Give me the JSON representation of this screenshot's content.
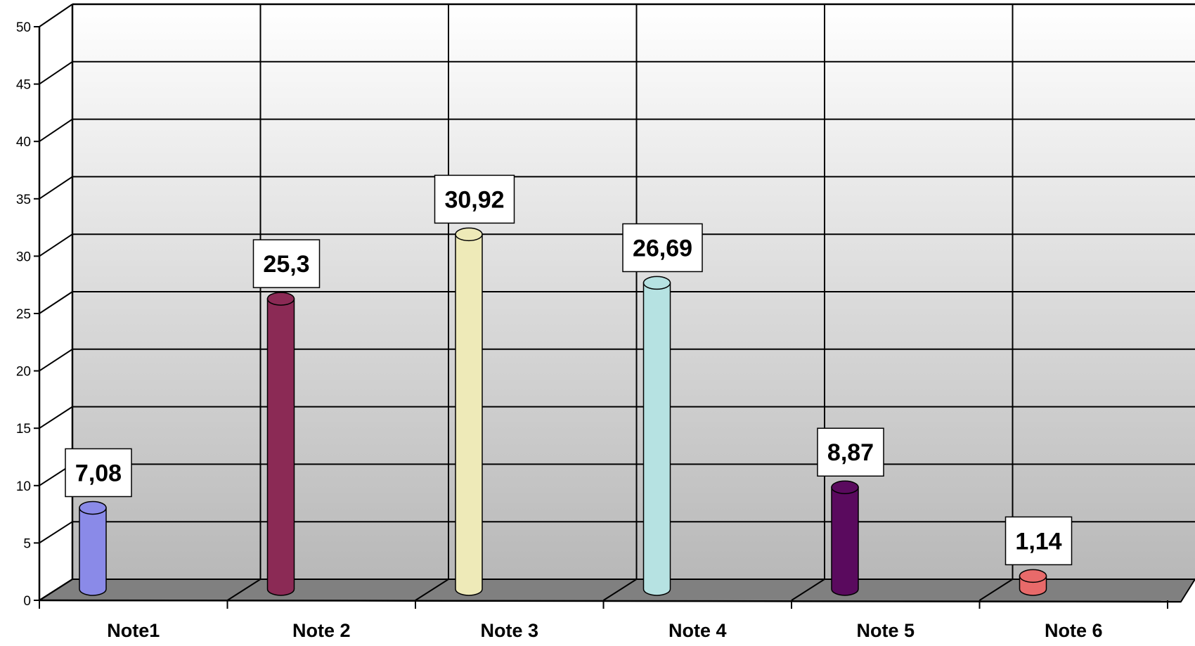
{
  "chart_data": {
    "type": "bar",
    "categories": [
      "Note1",
      "Note 2",
      "Note 3",
      "Note 4",
      "Note 5",
      "Note 6"
    ],
    "values": [
      7.08,
      25.3,
      30.92,
      26.69,
      8.87,
      1.14
    ],
    "value_labels": [
      "7,08",
      "25,3",
      "30,92",
      "26,69",
      "8,87",
      "1,14"
    ],
    "y_ticks": [
      "0",
      "5",
      "10",
      "15",
      "20",
      "25",
      "30",
      "35",
      "40",
      "45",
      "50"
    ],
    "ylim": [
      0,
      50
    ],
    "title": "",
    "xlabel": "",
    "ylabel": "",
    "grid": true,
    "bar_shape": "cylinder",
    "colors": [
      "#8a8ae8",
      "#8b2a55",
      "#eeeab8",
      "#b6e2e2",
      "#5a0a5e",
      "#e86a6a"
    ]
  }
}
